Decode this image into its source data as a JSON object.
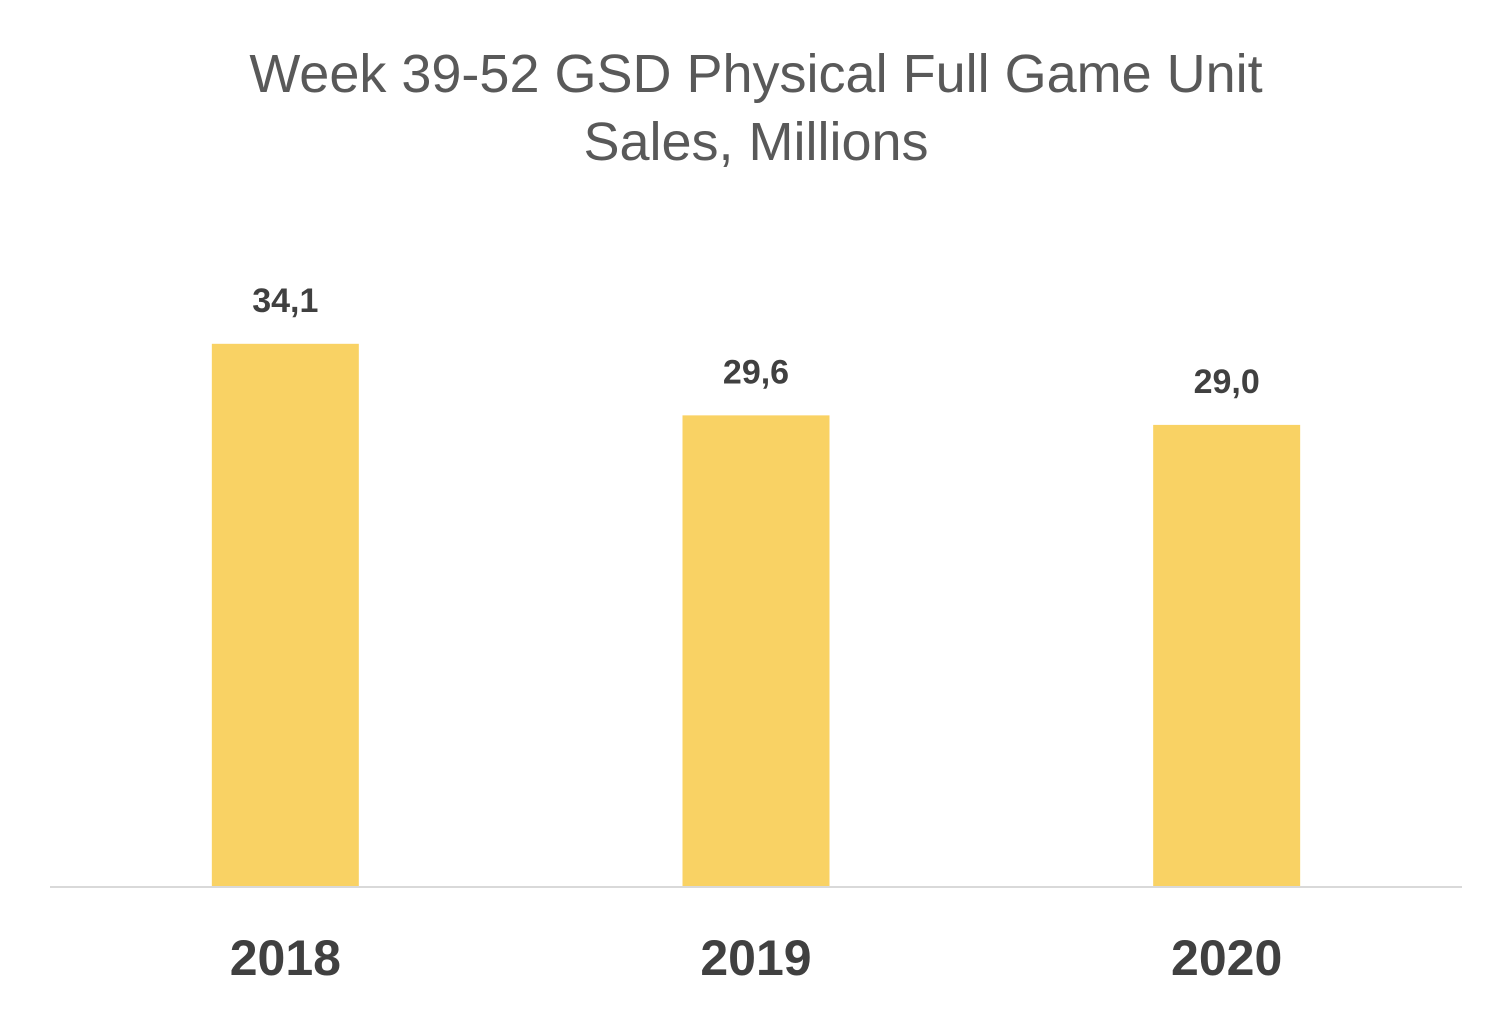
{
  "chart_data": {
    "type": "bar",
    "title_lines": [
      "Week 39-52 GSD Physical Full Game Unit",
      "Sales,  Millions"
    ],
    "categories": [
      "2018",
      "2019",
      "2020"
    ],
    "values": [
      34.1,
      29.6,
      29.0
    ],
    "data_labels": [
      "34,1",
      "29,6",
      "29,0"
    ],
    "ylim": [
      0,
      40
    ],
    "grid": false,
    "legend": "none",
    "bar_color": "#F9D264",
    "axis_color": "#D9D9D9"
  }
}
